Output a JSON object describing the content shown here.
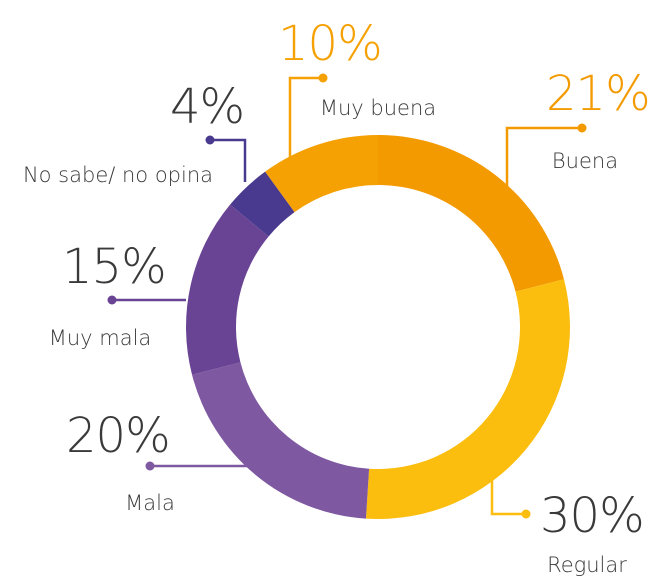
{
  "chart_data": {
    "type": "donut",
    "categories": [
      "Buena",
      "Regular",
      "Mala",
      "Muy mala",
      "No sabe/ no  opina",
      "Muy buena"
    ],
    "values": [
      21,
      30,
      20,
      15,
      4,
      10
    ],
    "value_labels": [
      "21%",
      "30%",
      "20%",
      "15%",
      "4%",
      "10%"
    ],
    "colors": [
      "#f39a00",
      "#fbbe0f",
      "#7e58a0",
      "#6a4494",
      "#4a3a8f",
      "#f5a003"
    ]
  }
}
